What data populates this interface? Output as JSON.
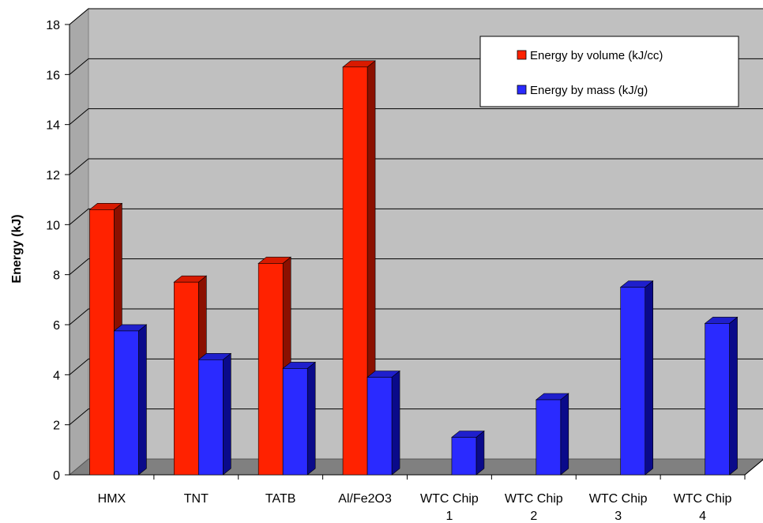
{
  "chart_data": {
    "type": "bar",
    "title": "",
    "xlabel": "",
    "ylabel": "Energy (kJ)",
    "ylim": [
      0,
      18
    ],
    "yticks": [
      0,
      2,
      4,
      6,
      8,
      10,
      12,
      14,
      16,
      18
    ],
    "categories": [
      [
        "HMX"
      ],
      [
        "TNT"
      ],
      [
        "TATB"
      ],
      [
        "Al/Fe2O3"
      ],
      [
        "WTC Chip",
        "1"
      ],
      [
        "WTC Chip",
        "2"
      ],
      [
        "WTC Chip",
        "3"
      ],
      [
        "WTC Chip",
        "4"
      ]
    ],
    "series": [
      {
        "name": "Energy by volume (kJ/cc)",
        "color": "#ff2200",
        "side": "#8b1000",
        "top": "#d81a00",
        "values": [
          10.6,
          7.7,
          8.45,
          16.3,
          null,
          null,
          null,
          null
        ]
      },
      {
        "name": "Energy by mass (kJ/g)",
        "color": "#2a2aff",
        "side": "#0a0a8a",
        "top": "#1f1fcc",
        "values": [
          5.75,
          4.6,
          4.25,
          3.9,
          1.5,
          3.0,
          7.5,
          6.05
        ]
      }
    ],
    "legend_position": "top-right",
    "grid": true,
    "style": "3d-column"
  }
}
